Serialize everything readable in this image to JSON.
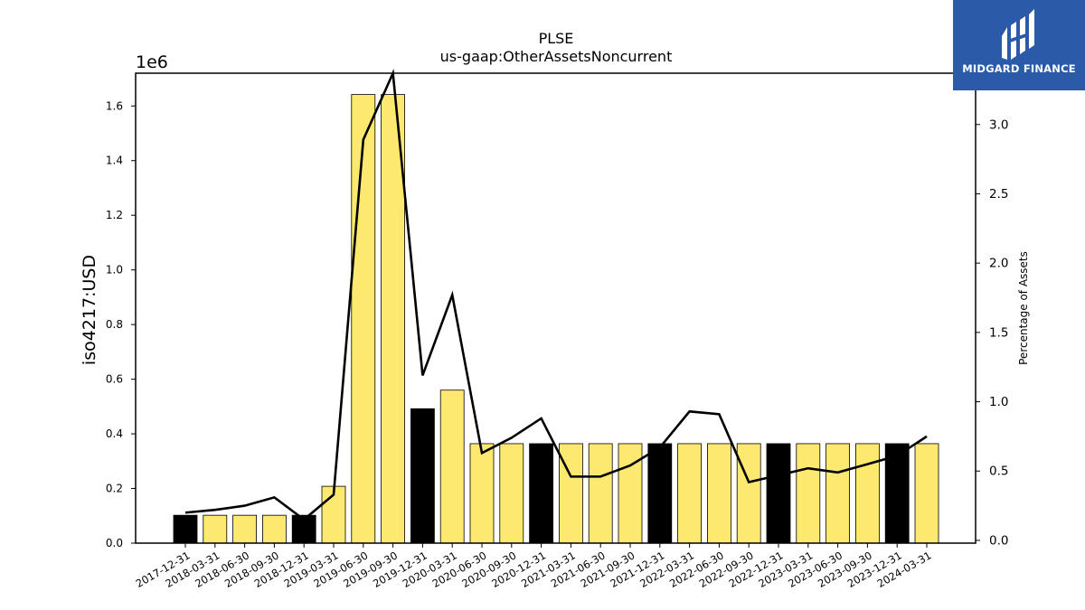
{
  "colors": {
    "bar_default": "#fde96f",
    "bar_highlight": "#000000",
    "line": "#000000",
    "logo_bg": "#2b5aa8"
  },
  "logo": {
    "text": "MIDGARD FINANCE",
    "icon": "midgard-logo-icon"
  },
  "chart_data": {
    "type": "bar",
    "title": "PLSE",
    "subtitle": "us-gaap:OtherAssetsNoncurrent",
    "ylabel": "iso4217:USD",
    "y2label": "Percentage of Assets",
    "y_scale_note": "1e6",
    "ylim": [
      0,
      1720000
    ],
    "y2lim": [
      -0.02,
      3.37
    ],
    "yticks": [
      "0.0",
      "0.2",
      "0.4",
      "0.6",
      "0.8",
      "1.0",
      "1.2",
      "1.4",
      "1.6"
    ],
    "y2ticks": [
      "0.0",
      "0.5",
      "1.0",
      "1.5",
      "2.0",
      "2.5",
      "3.0"
    ],
    "grid": false,
    "categories": [
      "2017-12-31",
      "2018-03-31",
      "2018-06-30",
      "2018-09-30",
      "2018-12-31",
      "2019-03-31",
      "2019-06-30",
      "2019-09-30",
      "2019-12-31",
      "2020-03-31",
      "2020-06-30",
      "2020-09-30",
      "2020-12-31",
      "2021-03-31",
      "2021-06-30",
      "2021-09-30",
      "2021-12-31",
      "2022-03-31",
      "2022-06-30",
      "2022-09-30",
      "2022-12-31",
      "2023-03-31",
      "2023-06-30",
      "2023-09-30",
      "2023-12-31",
      "2024-03-31"
    ],
    "values": [
      102000,
      102000,
      102000,
      102000,
      102000,
      208000,
      1642000,
      1642000,
      492000,
      560000,
      364000,
      364000,
      364000,
      364000,
      364000,
      364000,
      364000,
      364000,
      364000,
      364000,
      364000,
      364000,
      364000,
      364000,
      364000,
      364000
    ],
    "highlight": [
      true,
      false,
      false,
      false,
      true,
      false,
      false,
      false,
      true,
      false,
      false,
      false,
      true,
      false,
      false,
      false,
      true,
      false,
      false,
      false,
      true,
      false,
      false,
      false,
      true,
      false
    ],
    "line_series": {
      "axis": "right",
      "values": [
        0.2,
        0.22,
        0.25,
        0.31,
        0.15,
        0.33,
        2.89,
        3.37,
        1.19,
        1.77,
        0.63,
        0.74,
        0.88,
        0.46,
        0.46,
        0.54,
        0.67,
        0.93,
        0.91,
        0.42,
        0.47,
        0.52,
        0.49,
        0.55,
        0.61,
        0.75
      ]
    }
  }
}
